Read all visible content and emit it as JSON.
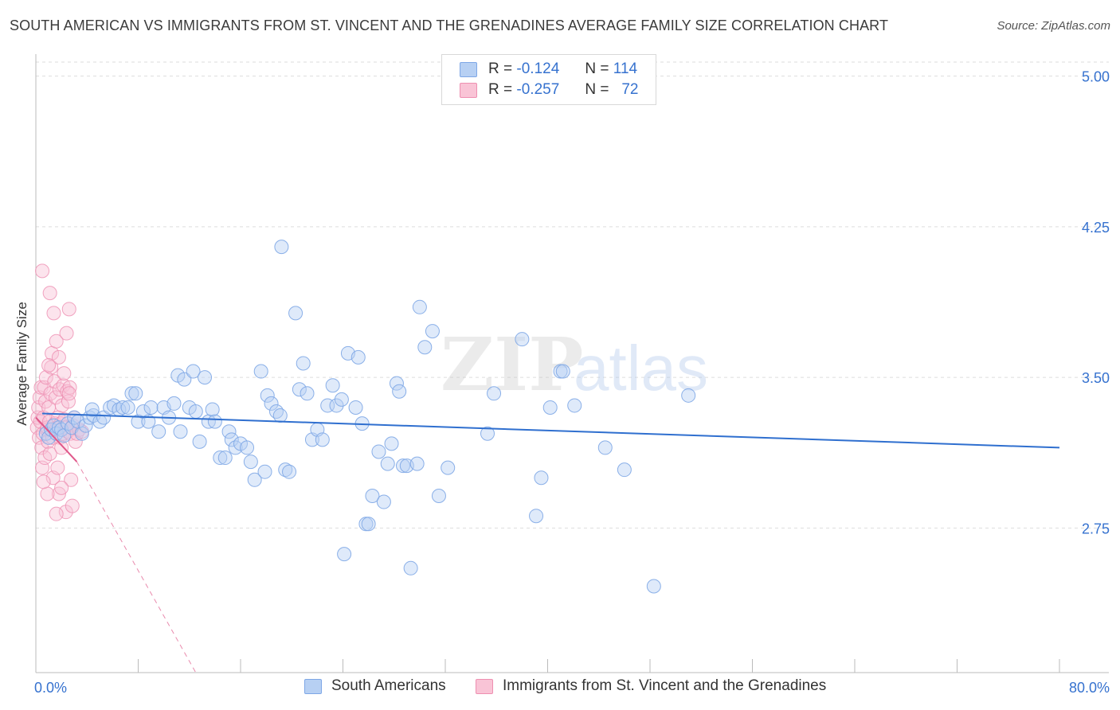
{
  "title": "SOUTH AMERICAN VS IMMIGRANTS FROM ST. VINCENT AND THE GRENADINES AVERAGE FAMILY SIZE CORRELATION CHART",
  "source": "Source: ZipAtlas.com",
  "watermark": {
    "zip": "ZIP",
    "atlas": "atlas"
  },
  "legend": {
    "r_label": "R =",
    "n_label": "N =",
    "rows": [
      {
        "r": "-0.124",
        "n": "114"
      },
      {
        "r": "-0.257",
        "n": "72"
      }
    ]
  },
  "colors": {
    "blue_fill": "#b7d0f3",
    "blue_stroke": "#7ea7e6",
    "blue_line": "#2f6fcf",
    "pink_fill": "#f9c4d6",
    "pink_stroke": "#ee8fb1",
    "pink_line": "#e0588a",
    "axis_label": "#3672cf",
    "grid": "#dddddd"
  },
  "chart_data": {
    "type": "scatter",
    "title": "SOUTH AMERICAN VS IMMIGRANTS FROM ST. VINCENT AND THE GRENADINES AVERAGE FAMILY SIZE CORRELATION CHART",
    "xlabel": "",
    "ylabel": "Average Family Size",
    "x_tick_labels": [
      "0.0%",
      "80.0%"
    ],
    "y_tick_labels": [
      "5.00",
      "4.25",
      "3.50",
      "2.75"
    ],
    "y_ticks": [
      5.0,
      4.25,
      3.5,
      2.75
    ],
    "xlim": [
      0,
      80
    ],
    "ylim": [
      2.03,
      5.07
    ],
    "grid": true,
    "legend_position": "top-center",
    "series": [
      {
        "name": "South Americans",
        "points": [
          [
            0.8,
            3.22
          ],
          [
            1.0,
            3.2
          ],
          [
            1.2,
            3.24
          ],
          [
            1.4,
            3.26
          ],
          [
            1.6,
            3.22
          ],
          [
            1.8,
            3.25
          ],
          [
            2.0,
            3.24
          ],
          [
            2.2,
            3.21
          ],
          [
            2.5,
            3.27
          ],
          [
            2.8,
            3.25
          ],
          [
            3.0,
            3.3
          ],
          [
            3.3,
            3.28
          ],
          [
            3.6,
            3.22
          ],
          [
            3.9,
            3.26
          ],
          [
            4.2,
            3.3
          ],
          [
            4.5,
            3.31
          ],
          [
            5.0,
            3.28
          ],
          [
            5.3,
            3.3
          ],
          [
            5.8,
            3.35
          ],
          [
            6.1,
            3.36
          ],
          [
            6.5,
            3.34
          ],
          [
            6.8,
            3.35
          ],
          [
            7.2,
            3.35
          ],
          [
            7.5,
            3.42
          ],
          [
            7.8,
            3.42
          ],
          [
            8.0,
            3.28
          ],
          [
            8.4,
            3.33
          ],
          [
            8.8,
            3.28
          ],
          [
            9.0,
            3.35
          ],
          [
            9.6,
            3.23
          ],
          [
            10.0,
            3.35
          ],
          [
            10.4,
            3.3
          ],
          [
            10.8,
            3.37
          ],
          [
            11.1,
            3.51
          ],
          [
            11.3,
            3.23
          ],
          [
            11.6,
            3.49
          ],
          [
            12.0,
            3.35
          ],
          [
            12.3,
            3.53
          ],
          [
            12.5,
            3.33
          ],
          [
            12.8,
            3.18
          ],
          [
            13.2,
            3.5
          ],
          [
            13.5,
            3.28
          ],
          [
            13.8,
            3.34
          ],
          [
            14.0,
            3.28
          ],
          [
            14.4,
            3.1
          ],
          [
            14.8,
            3.1
          ],
          [
            15.1,
            3.23
          ],
          [
            15.3,
            3.19
          ],
          [
            15.6,
            3.15
          ],
          [
            16.0,
            3.17
          ],
          [
            16.5,
            3.15
          ],
          [
            16.8,
            3.08
          ],
          [
            17.1,
            2.99
          ],
          [
            17.6,
            3.53
          ],
          [
            17.9,
            3.03
          ],
          [
            18.1,
            3.41
          ],
          [
            18.4,
            3.37
          ],
          [
            18.8,
            3.33
          ],
          [
            19.1,
            3.31
          ],
          [
            19.5,
            3.04
          ],
          [
            19.8,
            3.03
          ],
          [
            19.2,
            4.15
          ],
          [
            20.3,
            3.82
          ],
          [
            20.6,
            3.44
          ],
          [
            20.9,
            3.57
          ],
          [
            21.2,
            3.42
          ],
          [
            21.6,
            3.19
          ],
          [
            22.0,
            3.24
          ],
          [
            22.4,
            3.19
          ],
          [
            22.8,
            3.36
          ],
          [
            23.2,
            3.46
          ],
          [
            23.5,
            3.36
          ],
          [
            23.9,
            3.39
          ],
          [
            24.1,
            2.62
          ],
          [
            24.4,
            3.62
          ],
          [
            25.0,
            3.35
          ],
          [
            25.2,
            3.6
          ],
          [
            25.5,
            3.27
          ],
          [
            25.8,
            2.77
          ],
          [
            26.0,
            2.77
          ],
          [
            26.3,
            2.91
          ],
          [
            26.8,
            3.13
          ],
          [
            27.2,
            2.88
          ],
          [
            27.5,
            3.07
          ],
          [
            27.8,
            3.17
          ],
          [
            28.2,
            3.47
          ],
          [
            28.4,
            3.43
          ],
          [
            28.7,
            3.06
          ],
          [
            29.0,
            3.06
          ],
          [
            29.3,
            2.55
          ],
          [
            29.8,
            3.07
          ],
          [
            30.0,
            3.85
          ],
          [
            30.4,
            3.65
          ],
          [
            31.0,
            3.73
          ],
          [
            31.5,
            2.91
          ],
          [
            32.2,
            3.05
          ],
          [
            35.3,
            3.22
          ],
          [
            35.8,
            3.42
          ],
          [
            38.0,
            3.69
          ],
          [
            39.1,
            2.81
          ],
          [
            39.5,
            3.0
          ],
          [
            40.2,
            3.35
          ],
          [
            41.0,
            3.53
          ],
          [
            41.2,
            3.53
          ],
          [
            42.1,
            3.36
          ],
          [
            44.5,
            3.15
          ],
          [
            46.0,
            3.04
          ],
          [
            48.3,
            2.46
          ],
          [
            51.0,
            3.41
          ],
          [
            4.4,
            3.34
          ]
        ],
        "trend": [
          [
            0.5,
            3.32
          ],
          [
            80,
            3.15
          ]
        ]
      },
      {
        "name": "Immigrants from St. Vincent and the Grenadines",
        "points": [
          [
            0.1,
            3.25
          ],
          [
            0.15,
            3.3
          ],
          [
            0.2,
            3.35
          ],
          [
            0.25,
            3.2
          ],
          [
            0.3,
            3.4
          ],
          [
            0.35,
            3.28
          ],
          [
            0.4,
            3.45
          ],
          [
            0.45,
            3.15
          ],
          [
            0.5,
            3.05
          ],
          [
            0.55,
            3.22
          ],
          [
            0.6,
            3.3
          ],
          [
            0.65,
            3.45
          ],
          [
            0.7,
            3.1
          ],
          [
            0.75,
            3.38
          ],
          [
            0.8,
            3.5
          ],
          [
            0.85,
            3.24
          ],
          [
            0.9,
            3.25
          ],
          [
            0.95,
            3.18
          ],
          [
            1.0,
            3.35
          ],
          [
            1.05,
            3.28
          ],
          [
            1.1,
            3.12
          ],
          [
            1.15,
            3.42
          ],
          [
            1.2,
            3.55
          ],
          [
            1.25,
            3.62
          ],
          [
            1.3,
            3.2
          ],
          [
            1.35,
            3.0
          ],
          [
            1.4,
            3.26
          ],
          [
            1.45,
            3.48
          ],
          [
            1.5,
            3.27
          ],
          [
            1.55,
            3.4
          ],
          [
            1.6,
            3.68
          ],
          [
            1.65,
            3.25
          ],
          [
            1.7,
            3.05
          ],
          [
            1.75,
            3.3
          ],
          [
            1.8,
            2.92
          ],
          [
            1.85,
            3.44
          ],
          [
            1.9,
            3.2
          ],
          [
            1.95,
            3.27
          ],
          [
            2.0,
            3.15
          ],
          [
            2.05,
            3.36
          ],
          [
            2.1,
            3.22
          ],
          [
            2.15,
            3.46
          ],
          [
            2.2,
            3.52
          ],
          [
            2.25,
            3.29
          ],
          [
            2.3,
            3.25
          ],
          [
            2.35,
            2.83
          ],
          [
            2.4,
            3.72
          ],
          [
            2.45,
            3.43
          ],
          [
            2.5,
            3.23
          ],
          [
            2.55,
            3.38
          ],
          [
            2.6,
            3.84
          ],
          [
            2.65,
            3.45
          ],
          [
            2.7,
            3.22
          ],
          [
            2.75,
            2.99
          ],
          [
            2.8,
            3.25
          ],
          [
            2.85,
            2.86
          ],
          [
            2.9,
            3.26
          ],
          [
            3.0,
            3.3
          ],
          [
            3.1,
            3.18
          ],
          [
            3.2,
            3.22
          ],
          [
            0.5,
            4.03
          ],
          [
            1.1,
            3.92
          ],
          [
            1.4,
            3.82
          ],
          [
            1.8,
            3.6
          ],
          [
            0.9,
            2.92
          ],
          [
            0.6,
            2.98
          ],
          [
            1.0,
            3.56
          ],
          [
            1.6,
            2.82
          ],
          [
            2.0,
            2.95
          ],
          [
            2.6,
            3.42
          ],
          [
            3.4,
            3.24
          ],
          [
            3.6,
            3.23
          ]
        ],
        "trend": [
          [
            0.0,
            3.3
          ],
          [
            3.2,
            3.08
          ]
        ],
        "trend_extension": [
          [
            3.2,
            3.08
          ],
          [
            12.5,
            2.03
          ]
        ]
      }
    ]
  },
  "bottom_legend": [
    "South Americans",
    "Immigrants from St. Vincent and the Grenadines"
  ]
}
